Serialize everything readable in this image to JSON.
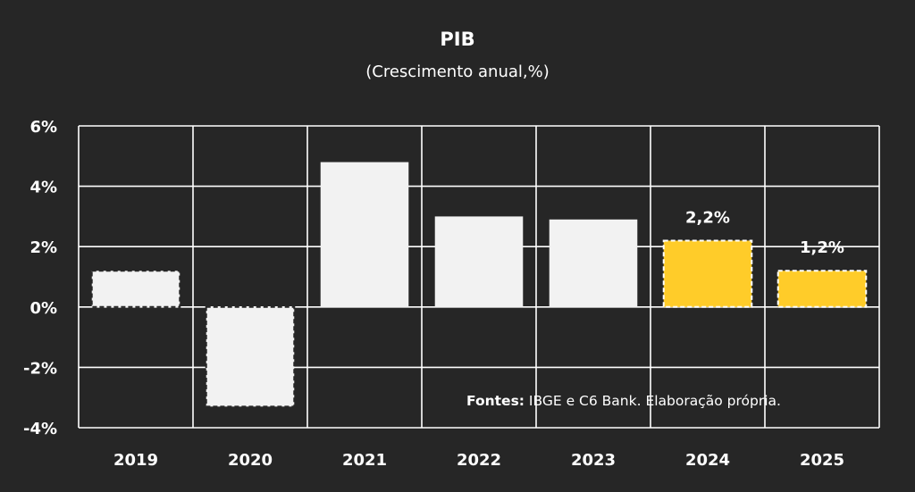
{
  "chart_data": {
    "type": "bar",
    "title": "PIB",
    "subtitle": "(Crescimento anual,%)",
    "categories": [
      "2019",
      "2020",
      "2021",
      "2022",
      "2023",
      "2024",
      "2025"
    ],
    "values": [
      1.2,
      -3.3,
      4.8,
      3.0,
      2.9,
      2.2,
      1.2
    ],
    "forecast": [
      false,
      false,
      false,
      false,
      false,
      true,
      true
    ],
    "data_labels": [
      "",
      "",
      "",
      "",
      "",
      "2,2%",
      "1,2%"
    ],
    "ylim": [
      -4,
      6
    ],
    "yticks": [
      6,
      4,
      2,
      0,
      -2,
      -4
    ],
    "ytick_labels": [
      "6%",
      "4%",
      "2%",
      "0%",
      "-2%",
      "-4%"
    ],
    "grid": true,
    "xlabel": "",
    "ylabel": "",
    "colors": {
      "background": "#262626",
      "bar_actual": "#f2f2f2",
      "bar_forecast": "#ffcc29",
      "grid": "#ffffff",
      "text": "#ffffff"
    }
  },
  "footnote": {
    "label": "Fontes:",
    "text": " IBGE e  C6 Bank. Elaboração própria."
  }
}
